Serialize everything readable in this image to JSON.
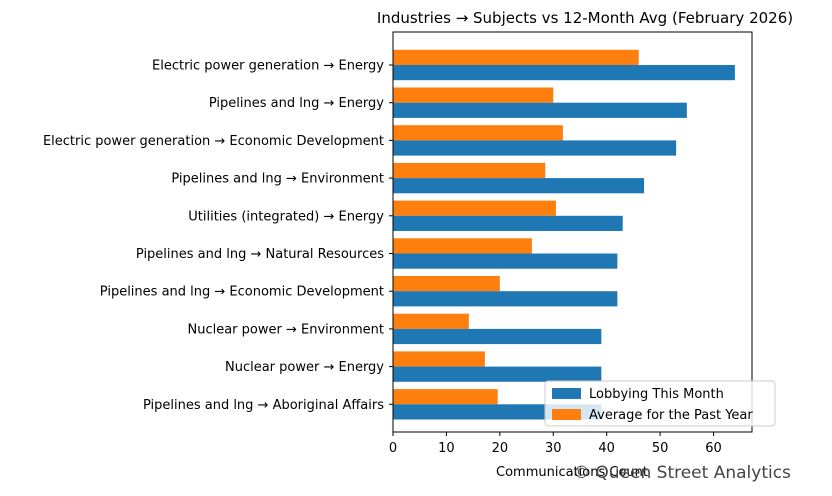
{
  "chart_data": {
    "type": "bar",
    "orientation": "horizontal",
    "title": "Industries → Subjects vs 12-Month Avg (February 2026)",
    "xlabel": "Communications Count",
    "ylabel": "",
    "xlim": [
      0,
      67.2
    ],
    "xticks": [
      0,
      10,
      20,
      30,
      40,
      50,
      60
    ],
    "grid": false,
    "legend_position": "bottom-right",
    "categories": [
      "Electric power generation → Energy",
      "Pipelines and lng → Energy",
      "Electric power generation → Economic Development",
      "Pipelines and lng → Environment",
      "Utilities (integrated) → Energy",
      "Pipelines and lng → Natural Resources",
      "Pipelines and lng → Economic Development",
      "Nuclear power → Environment",
      "Nuclear power → Energy",
      "Pipelines and lng → Aboriginal Affairs"
    ],
    "series": [
      {
        "name": "Lobbying This Month",
        "color": "#1f77b4",
        "values": [
          64,
          55,
          53,
          47,
          43,
          42,
          42,
          39,
          39,
          39
        ]
      },
      {
        "name": "Average for the Past Year",
        "color": "#ff7f0e",
        "values": [
          46,
          30,
          31.8,
          28.5,
          30.5,
          26,
          20,
          14.2,
          17.2,
          19.6
        ]
      }
    ]
  },
  "watermark": "© Queen Street Analytics"
}
